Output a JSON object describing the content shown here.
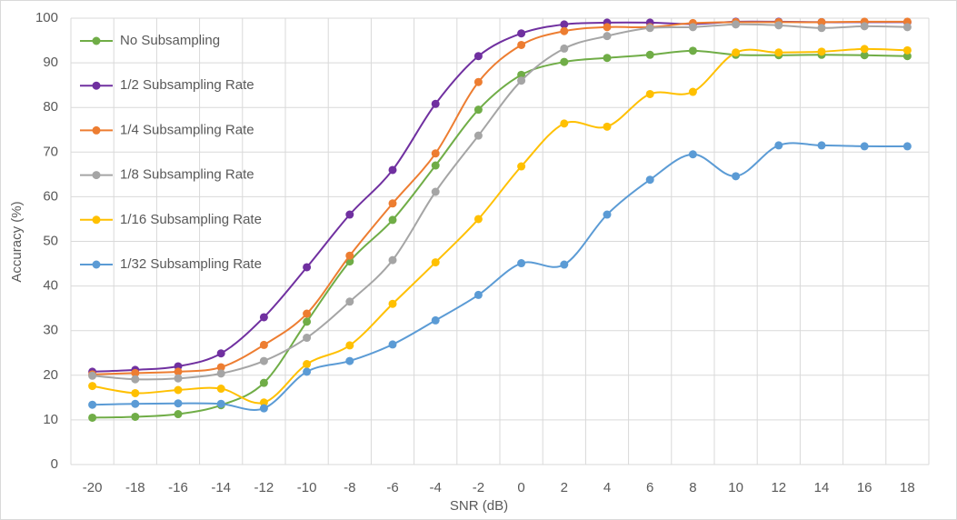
{
  "chart_data": {
    "type": "line",
    "smooth": true,
    "grid": true,
    "legend": "top-left",
    "x_label": "SNR (dB)",
    "y_label": "Accuracy (%)",
    "categories": [
      "-20",
      "-18",
      "-16",
      "-14",
      "-12",
      "-10",
      "-8",
      "-6",
      "-4",
      "-2",
      "0",
      "2",
      "4",
      "6",
      "8",
      "10",
      "12",
      "14",
      "16",
      "18"
    ],
    "ylim": [
      0,
      100
    ],
    "yticks": [
      0,
      10,
      20,
      30,
      40,
      50,
      60,
      70,
      80,
      90,
      100
    ],
    "series": [
      {
        "name": "No Subsampling",
        "color": "#70ad47",
        "values": [
          10.5,
          10.7,
          11.3,
          13.3,
          18.3,
          32,
          45.5,
          54.8,
          67,
          79.5,
          87.3,
          90.2,
          91.1,
          91.8,
          92.7,
          91.8,
          91.7,
          91.8,
          91.7,
          91.5
        ]
      },
      {
        "name": "1/2 Subsampling Rate",
        "color": "#7030a0",
        "values": [
          20.8,
          21.2,
          22,
          24.9,
          33,
          44.2,
          56,
          66,
          80.8,
          91.5,
          96.6,
          98.6,
          99,
          99,
          98.7,
          99.2,
          99.2,
          99.1,
          99.1,
          99.1
        ]
      },
      {
        "name": "1/4 Subsampling Rate",
        "color": "#ed7d31",
        "values": [
          20.2,
          20.5,
          20.8,
          21.8,
          26.8,
          33.8,
          46.8,
          58.5,
          69.7,
          85.7,
          94,
          97.1,
          98,
          98,
          98.9,
          99.1,
          99.1,
          99.1,
          99.2,
          99.2
        ]
      },
      {
        "name": "1/8 Subsampling Rate",
        "color": "#a5a5a5",
        "values": [
          19.9,
          19.1,
          19.3,
          20.4,
          23.2,
          28.4,
          36.5,
          45.8,
          61.1,
          73.7,
          86,
          93.2,
          96,
          97.8,
          98,
          98.6,
          98.4,
          97.8,
          98.2,
          98
        ]
      },
      {
        "name": "1/16 Subsampling Rate",
        "color": "#ffc000",
        "values": [
          17.6,
          16,
          16.7,
          17,
          13.9,
          22.5,
          26.7,
          36,
          45.3,
          55,
          66.8,
          76.4,
          75.7,
          83,
          83.5,
          92.3,
          92.3,
          92.5,
          93.1,
          92.8
        ]
      },
      {
        "name": "1/32 Subsampling Rate",
        "color": "#5b9bd5",
        "values": [
          13.4,
          13.6,
          13.7,
          13.6,
          12.6,
          20.8,
          23.2,
          26.9,
          32.3,
          38,
          45.1,
          44.8,
          56,
          63.8,
          69.5,
          64.6,
          71.5,
          71.5,
          71.3,
          71.3
        ]
      }
    ]
  }
}
